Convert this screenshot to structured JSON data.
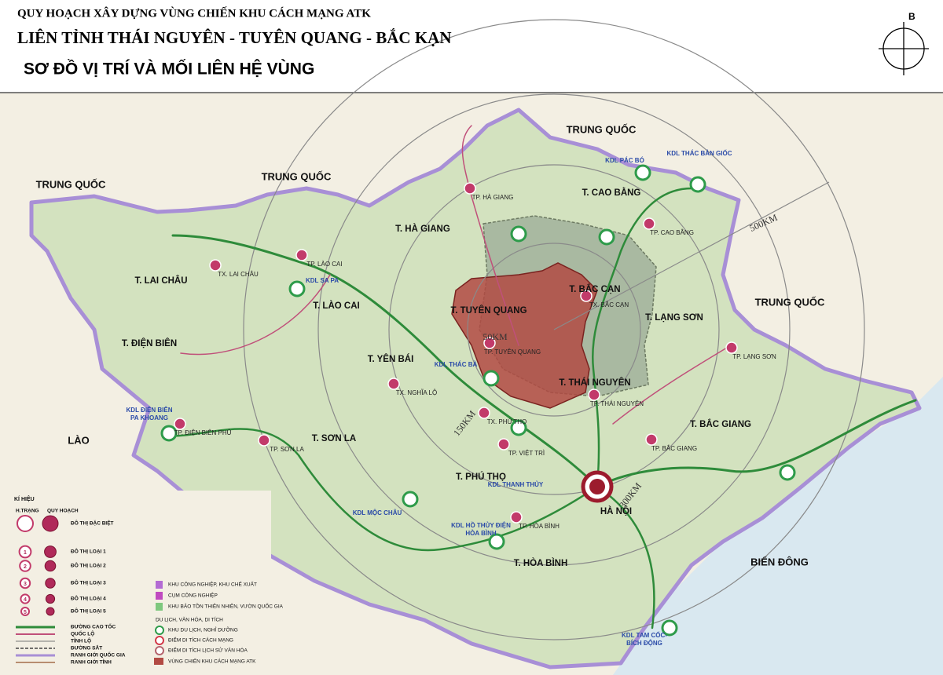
{
  "header": {
    "title_line1": "QUY HOẠCH XÂY DỰNG VÙNG CHIẾN KHU CÁCH MẠNG ATK",
    "title_line2": "LIÊN TỈNH THÁI NGUYÊN - TUYÊN QUANG - BẮC KẠN",
    "subtitle": "SƠ ĐỒ VỊ TRÍ VÀ MỐI LIÊN HỆ VÙNG",
    "compass": "B"
  },
  "map": {
    "regions": [
      "TRUNG QUỐC",
      "TRUNG QUỐC",
      "TRUNG QUỐC",
      "TRUNG QUỐC",
      "LÀO",
      "BIỂN ĐÔNG"
    ],
    "provinces": [
      "T. LAI CHÂU",
      "T. ĐIỆN BIÊN",
      "T. LÀO CAI",
      "T. HÀ GIANG",
      "T. YÊN BÁI",
      "T. SƠN LA",
      "T. PHÚ THỌ",
      "T. HÒA BÌNH",
      "T. TUYÊN QUANG",
      "T. BẮC CẠN",
      "T. THÁI NGUYÊN",
      "T. CAO BẰNG",
      "T. LẠNG SƠN",
      "T. BẮC GIANG",
      "HÀ NỘI"
    ],
    "cities": [
      "TP. LÀO CAI",
      "TX. LAI CHÂU",
      "TP. ĐIỆN BIÊN PHỦ",
      "TP. SƠN LA",
      "TP. HÀ GIANG",
      "TP. TUYÊN QUANG",
      "TX. BẮC CẠN",
      "TP. THÁI NGUYÊN",
      "TP. CAO BẰNG",
      "TP. LẠNG SƠN",
      "TP. BẮC GIANG",
      "TP. VIỆT TRÌ",
      "TX. PHÚ THỌ",
      "TX. NGHĨA LỘ",
      "TP. HÒA BÌNH"
    ],
    "tourism": [
      "KDL SA PA",
      "KDL ĐIỆN BIÊN",
      "PA KHOANG",
      "KDL PÁC BÓ",
      "KDL THÁC BẢN GIỐC",
      "KDL MỘC CHÂU",
      "KDL HỒ THỦY ĐIỆN",
      "HÒA BÌNH",
      "KDL TAM CỐC-",
      "BÍCH ĐỘNG",
      "KDL THÁC BÀ",
      "KDL THANH THỦY"
    ],
    "distances": [
      "50KM",
      "150KM",
      "300KM",
      "500KM"
    ]
  },
  "legend": {
    "title": "KÍ HIỆU",
    "columns": [
      "H.TRẠNG",
      "QUY HOẠCH"
    ],
    "urban": [
      {
        "label": "ĐÔ THỊ ĐẶC BIỆT"
      },
      {
        "number": 1,
        "label": "ĐÔ THỊ LOẠI 1"
      },
      {
        "number": 2,
        "label": "ĐÔ THỊ LOẠI 2"
      },
      {
        "number": 3,
        "label": "ĐÔ THỊ LOẠI 3"
      },
      {
        "number": 4,
        "label": "ĐÔ THỊ LOẠI 4"
      },
      {
        "number": 5,
        "label": "ĐÔ THỊ LOẠI 5"
      }
    ],
    "lines": [
      "ĐƯỜNG CAO TỐC",
      "QUỐC LỘ",
      "TỈNH LỘ",
      "ĐƯỜNG SẮT",
      "RANH GIỚI QUỐC GIA",
      "RANH GIỚI TỈNH"
    ],
    "zones": [
      "KHU CÔNG NGHIỆP, KHU CHẾ XUẤT",
      "CỤM CÔNG NGHIỆP",
      "KHU BẢO TỒN THIÊN NHIÊN, VƯỜN QUỐC GIA"
    ],
    "tourism_heading": "DU LỊCH, VĂN HÓA, DI TÍCH",
    "tourism": [
      "KHU DU LỊCH, NGHỈ DƯỠNG",
      "ĐIỂM DI TÍCH CÁCH MẠNG",
      "ĐIỂM DI TÍCH LỊCH SỬ VĂN HÓA"
    ],
    "atk": "VÙNG CHIẾN KHU CÁCH MẠNG ATK"
  }
}
